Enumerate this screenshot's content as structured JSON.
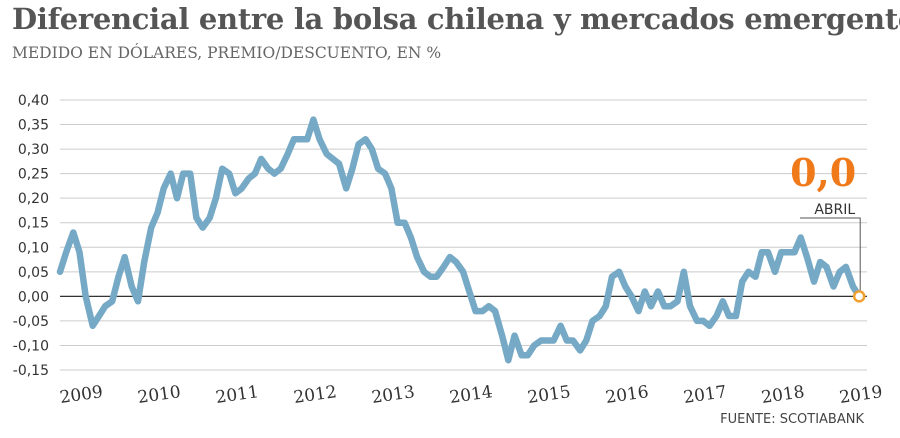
{
  "header": {
    "title": "Diferencial entre la bolsa chilena y mercados emergentes",
    "subtitle": "MEDIDO EN DÓLARES, PREMIO/DESCUENTO, EN %"
  },
  "footer": {
    "source": "FUENTE: SCOTIABANK"
  },
  "annotation": {
    "value": "0,0",
    "label": "ABRIL"
  },
  "colors": {
    "line": "#76a9c5",
    "endpoint": "#f0a030",
    "annotation": "#f07a1a",
    "grid": "#cccccc",
    "zero": "#333333"
  },
  "chart_data": {
    "type": "line",
    "title": "Diferencial entre la bolsa chilena y mercados emergentes",
    "subtitle": "MEDIDO EN DÓLARES, PREMIO/DESCUENTO, EN %",
    "xlabel": "",
    "ylabel": "",
    "ylim": [
      -0.15,
      0.4
    ],
    "xlim": [
      2009.0,
      2019.35
    ],
    "grid": true,
    "y_ticks": [
      0.4,
      0.35,
      0.3,
      0.25,
      0.2,
      0.15,
      0.1,
      0.05,
      0.0,
      -0.05,
      -0.1,
      -0.15
    ],
    "y_tick_labels": [
      "0,40",
      "0,35",
      "0,30",
      "0,25",
      "0,20",
      "0,15",
      "0,10",
      "0,05",
      "0,00",
      "-0,05",
      "-0,10",
      "-0,15"
    ],
    "x_ticks": [
      2009,
      2010,
      2011,
      2012,
      2013,
      2014,
      2015,
      2016,
      2017,
      2018,
      2019
    ],
    "x_tick_labels": [
      "2009",
      "2010",
      "2011",
      "2012",
      "2013",
      "2014",
      "2015",
      "2016",
      "2017",
      "2018",
      "2019"
    ],
    "series": [
      {
        "x": [
          2009.0,
          2009.08,
          2009.17,
          2009.25,
          2009.33,
          2009.42,
          2009.5,
          2009.58,
          2009.67,
          2009.75,
          2009.83,
          2009.92,
          2010.0,
          2010.08,
          2010.17,
          2010.25,
          2010.33,
          2010.42,
          2010.5,
          2010.58,
          2010.67,
          2010.75,
          2010.83,
          2010.92,
          2011.0,
          2011.08,
          2011.17,
          2011.25,
          2011.33,
          2011.42,
          2011.5,
          2011.58,
          2011.67,
          2011.75,
          2011.83,
          2011.92,
          2012.0,
          2012.08,
          2012.17,
          2012.25,
          2012.33,
          2012.42,
          2012.5,
          2012.58,
          2012.67,
          2012.75,
          2012.83,
          2012.92,
          2013.0,
          2013.08,
          2013.17,
          2013.25,
          2013.33,
          2013.42,
          2013.5,
          2013.58,
          2013.67,
          2013.75,
          2013.83,
          2013.92,
          2014.0,
          2014.08,
          2014.17,
          2014.25,
          2014.33,
          2014.42,
          2014.5,
          2014.58,
          2014.67,
          2014.75,
          2014.83,
          2014.92,
          2015.0,
          2015.08,
          2015.17,
          2015.25,
          2015.33,
          2015.42,
          2015.5,
          2015.58,
          2015.67,
          2015.75,
          2015.83,
          2015.92,
          2016.0,
          2016.08,
          2016.17,
          2016.25,
          2016.33,
          2016.42,
          2016.5,
          2016.58,
          2016.67,
          2016.75,
          2016.83,
          2016.92,
          2017.0,
          2017.08,
          2017.17,
          2017.25,
          2017.33,
          2017.42,
          2017.5,
          2017.58,
          2017.67,
          2017.75,
          2017.83,
          2017.92,
          2018.0,
          2018.08,
          2018.17,
          2018.25,
          2018.33,
          2018.42,
          2018.5,
          2018.58,
          2018.67,
          2018.75,
          2018.83,
          2018.92,
          2019.0,
          2019.08,
          2019.17,
          2019.25
        ],
        "y": [
          0.05,
          0.09,
          0.13,
          0.09,
          0.0,
          -0.06,
          -0.04,
          -0.02,
          -0.01,
          0.04,
          0.08,
          0.02,
          -0.01,
          0.07,
          0.14,
          0.17,
          0.22,
          0.25,
          0.2,
          0.25,
          0.25,
          0.16,
          0.14,
          0.16,
          0.2,
          0.26,
          0.25,
          0.21,
          0.22,
          0.24,
          0.25,
          0.28,
          0.26,
          0.25,
          0.26,
          0.29,
          0.32,
          0.32,
          0.32,
          0.36,
          0.32,
          0.29,
          0.28,
          0.27,
          0.22,
          0.26,
          0.31,
          0.32,
          0.3,
          0.26,
          0.25,
          0.22,
          0.15,
          0.15,
          0.12,
          0.08,
          0.05,
          0.04,
          0.04,
          0.06,
          0.08,
          0.07,
          0.05,
          0.01,
          -0.03,
          -0.03,
          -0.02,
          -0.03,
          -0.08,
          -0.13,
          -0.08,
          -0.12,
          -0.12,
          -0.1,
          -0.09,
          -0.09,
          -0.09,
          -0.06,
          -0.09,
          -0.09,
          -0.11,
          -0.09,
          -0.05,
          -0.04,
          -0.02,
          0.04,
          0.05,
          0.02,
          0.0,
          -0.03,
          0.01,
          -0.02,
          0.01,
          -0.02,
          -0.02,
          -0.01,
          0.05,
          -0.02,
          -0.05,
          -0.05,
          -0.06,
          -0.04,
          -0.01,
          -0.04,
          -0.04,
          0.03,
          0.05,
          0.04,
          0.09,
          0.09,
          0.05,
          0.09,
          0.09,
          0.09,
          0.12,
          0.08,
          0.03,
          0.07,
          0.06,
          0.02,
          0.05,
          0.06,
          0.02,
          0.0
        ]
      }
    ]
  }
}
